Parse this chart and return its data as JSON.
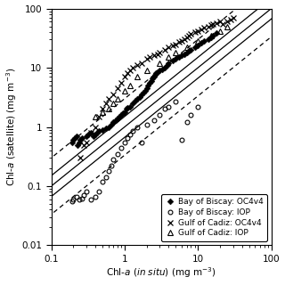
{
  "title": "",
  "xlabel": "Chl-a (in situ ) (mg m⁻³)",
  "ylabel_text": "Chl-a (satellite) (mg m⁻³)",
  "xlim": [
    0.1,
    100
  ],
  "ylim": [
    0.01,
    100
  ],
  "background_color": "#ffffff",
  "biscay_oc4_x": [
    0.19,
    0.2,
    0.21,
    0.22,
    0.23,
    0.24,
    0.25,
    0.26,
    0.3,
    0.32,
    0.35,
    0.38,
    0.4,
    0.42,
    0.45,
    0.5,
    0.55,
    0.6,
    0.65,
    0.7,
    0.75,
    0.8,
    0.85,
    0.9,
    0.95,
    1.0,
    1.05,
    1.1,
    1.2,
    1.3,
    1.4,
    1.5,
    1.6,
    1.7,
    1.8,
    1.9,
    2.0,
    2.1,
    2.2,
    2.3,
    2.4,
    2.5,
    2.6,
    2.7,
    2.8,
    3.0,
    3.2,
    3.5,
    3.8,
    4.0,
    4.5,
    5.0,
    5.5,
    6.0,
    6.5,
    7.0,
    7.5,
    8.0,
    9.0,
    10.0,
    11.0,
    12.0,
    14.0,
    15.0,
    16.0,
    18.0
  ],
  "biscay_oc4_y": [
    0.55,
    0.6,
    0.65,
    0.7,
    0.5,
    0.55,
    0.6,
    0.65,
    0.7,
    0.75,
    0.8,
    0.7,
    0.75,
    0.8,
    0.85,
    0.9,
    0.95,
    1.0,
    1.1,
    1.2,
    1.3,
    1.4,
    1.5,
    1.6,
    1.7,
    1.8,
    2.0,
    2.1,
    2.2,
    2.5,
    2.8,
    3.0,
    3.2,
    3.5,
    3.8,
    4.0,
    4.5,
    5.0,
    5.5,
    6.0,
    6.5,
    7.0,
    7.5,
    8.0,
    8.5,
    9.0,
    9.5,
    10.0,
    11.0,
    12.0,
    13.0,
    14.0,
    15.0,
    16.0,
    17.0,
    18.0,
    19.0,
    20.0,
    22.0,
    24.0,
    26.0,
    28.0,
    30.0,
    32.0,
    35.0,
    38.0
  ],
  "biscay_iop_x": [
    0.19,
    0.2,
    0.22,
    0.24,
    0.26,
    0.28,
    0.3,
    0.35,
    0.4,
    0.45,
    0.5,
    0.55,
    0.6,
    0.65,
    0.7,
    0.8,
    0.9,
    1.0,
    1.1,
    1.2,
    1.3,
    1.5,
    1.7,
    2.0,
    2.5,
    3.0,
    3.5,
    4.0,
    5.0,
    6.0,
    7.0,
    8.0,
    10.0
  ],
  "biscay_iop_y": [
    0.055,
    0.06,
    0.065,
    0.06,
    0.062,
    0.07,
    0.08,
    0.06,
    0.065,
    0.08,
    0.12,
    0.14,
    0.18,
    0.22,
    0.28,
    0.35,
    0.45,
    0.55,
    0.65,
    0.75,
    0.85,
    1.0,
    0.55,
    1.1,
    1.3,
    1.6,
    2.0,
    2.2,
    2.7,
    0.6,
    1.2,
    1.6,
    2.2
  ],
  "cadiz_oc4_x": [
    0.25,
    0.28,
    0.3,
    0.35,
    0.4,
    0.45,
    0.5,
    0.55,
    0.6,
    0.7,
    0.8,
    0.9,
    1.0,
    1.1,
    1.2,
    1.3,
    1.5,
    1.7,
    2.0,
    2.2,
    2.5,
    2.8,
    3.0,
    3.5,
    4.0,
    4.5,
    5.0,
    5.5,
    6.0,
    6.5,
    7.0,
    7.5,
    8.0,
    9.0,
    10.0,
    11.0,
    12.0,
    14.0,
    15.0,
    16.0,
    18.0,
    20.0,
    22.0,
    25.0,
    28.0,
    30.0
  ],
  "cadiz_oc4_y": [
    0.3,
    0.5,
    0.55,
    0.8,
    1.0,
    1.5,
    2.0,
    2.5,
    3.0,
    3.5,
    4.5,
    5.5,
    7.0,
    8.0,
    9.0,
    10.0,
    11.0,
    12.0,
    14.0,
    15.0,
    16.0,
    17.0,
    18.0,
    20.0,
    22.0,
    24.0,
    25.0,
    27.0,
    28.0,
    30.0,
    32.0,
    35.0,
    37.0,
    40.0,
    42.0,
    45.0,
    47.0,
    50.0,
    52.0,
    55.0,
    57.0,
    60.0,
    55.0,
    60.0,
    65.0,
    70.0
  ],
  "cadiz_iop_x": [
    0.4,
    0.5,
    0.6,
    0.7,
    0.8,
    1.0,
    1.2,
    1.5,
    2.0,
    3.0,
    4.0,
    5.0,
    7.0,
    10.0,
    15.0,
    20.0,
    25.0
  ],
  "cadiz_iop_y": [
    1.5,
    1.8,
    2.0,
    2.5,
    3.0,
    4.0,
    5.0,
    7.0,
    9.0,
    12.0,
    15.0,
    18.0,
    22.0,
    28.0,
    35.0,
    42.0,
    50.0
  ],
  "legend_fontsize": 6.5,
  "tick_fontsize": 7.5
}
